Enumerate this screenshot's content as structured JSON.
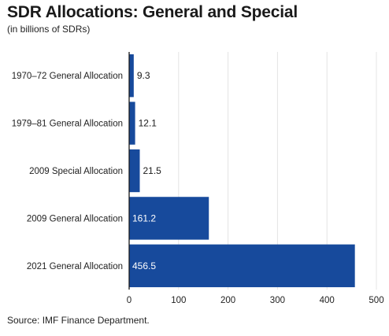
{
  "chart_data": {
    "type": "bar",
    "orientation": "horizontal",
    "title": "SDR Allocations: General and Special",
    "subtitle": "(in billions of SDRs)",
    "categories": [
      "1970–72 General Allocation",
      "1979–81 General Allocation",
      "2009 Special Allocation",
      "2009 General Allocation",
      "2021 General Allocation"
    ],
    "values": [
      9.3,
      12.1,
      21.5,
      161.2,
      456.5
    ],
    "value_labels": [
      "9.3",
      "12.1",
      "21.5",
      "161.2",
      "456.5"
    ],
    "xlim": [
      0,
      500
    ],
    "xticks": [
      0,
      100,
      200,
      300,
      400,
      500
    ],
    "xtick_labels": [
      "0",
      "100",
      "200",
      "300",
      "400",
      "500"
    ],
    "grid": "vertical",
    "bar_color": "#174a9c",
    "grid_color": "#e4e4e4",
    "axis_color": "#1a1a1a"
  },
  "source": "Source: IMF Finance Department."
}
